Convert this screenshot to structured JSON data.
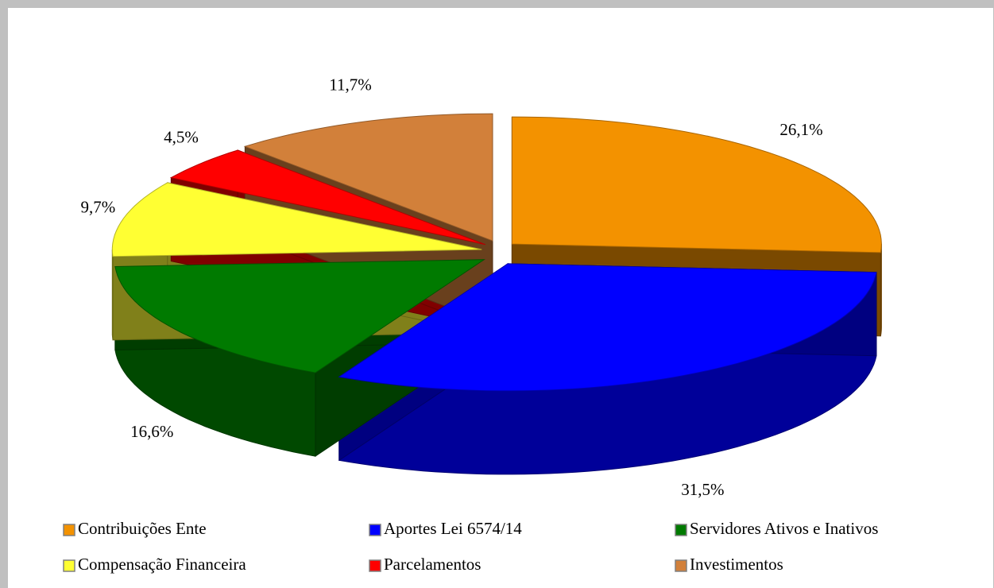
{
  "chart_data": {
    "type": "pie3d",
    "categories": [
      "Contribuições Ente",
      "Aportes Lei 6574/14",
      "Servidores Ativos e Inativos",
      "Compensação Financeira",
      "Parcelamentos",
      "Investimentos"
    ],
    "values": [
      26.1,
      31.5,
      16.6,
      9.7,
      4.5,
      11.7
    ],
    "value_labels": [
      "26,1%",
      "31,5%",
      "16,6%",
      "9,7%",
      "4,5%",
      "11,7%"
    ],
    "colors": [
      "#f39200",
      "#0000ff",
      "#007a00",
      "#ffff33",
      "#ff0000",
      "#d2803a"
    ],
    "legend": "bottom"
  }
}
